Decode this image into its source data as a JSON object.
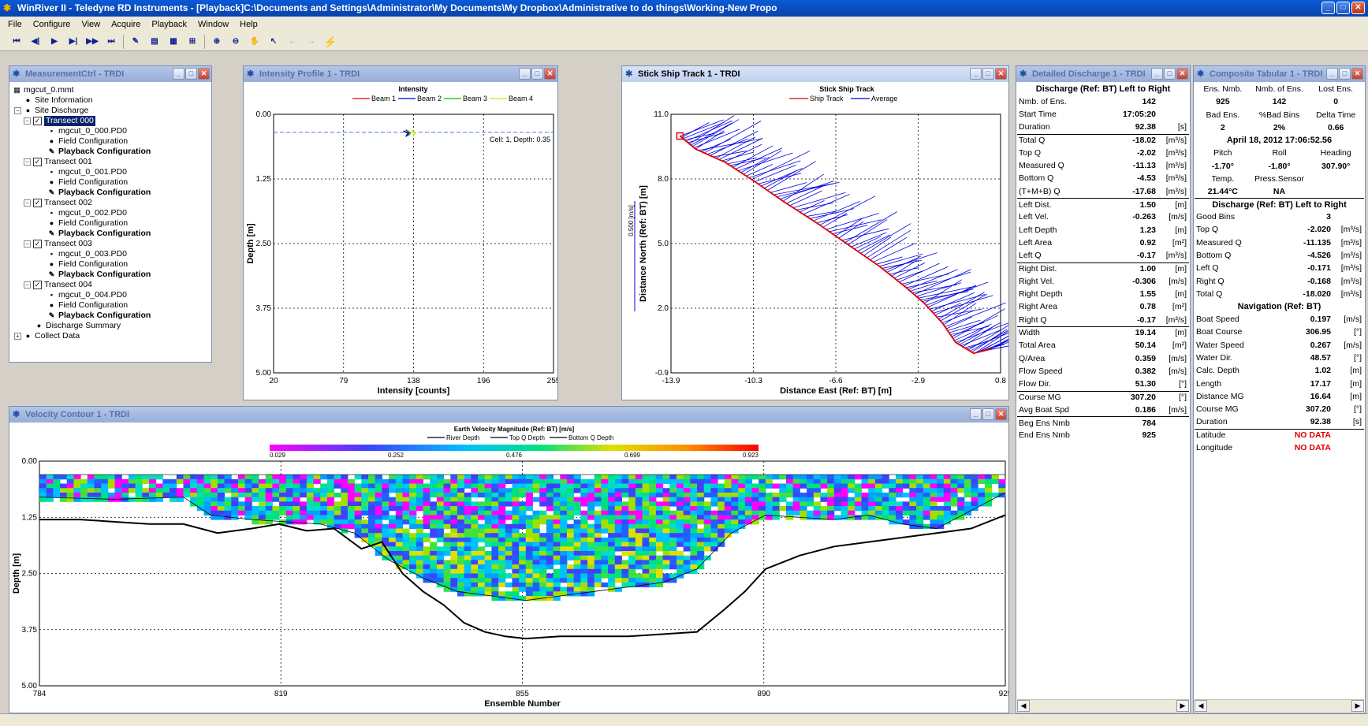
{
  "window": {
    "title": "WinRiver II - Teledyne RD Instruments - [Playback]C:\\Documents and Settings\\Administrator\\My Documents\\My Dropbox\\Administrative to do things\\Working-New Propo"
  },
  "menu": [
    "File",
    "Configure",
    "View",
    "Acquire",
    "Playback",
    "Window",
    "Help"
  ],
  "measurement": {
    "title": "MeasurementCtrl - TRDI",
    "file": "mgcut_0.mmt",
    "site_info": "Site Information",
    "site_discharge": "Site Discharge",
    "transects": [
      {
        "name": "Transect 000",
        "file": "mgcut_0_000.PD0"
      },
      {
        "name": "Transect 001",
        "file": "mgcut_0_001.PD0"
      },
      {
        "name": "Transect 002",
        "file": "mgcut_0_002.PD0"
      },
      {
        "name": "Transect 003",
        "file": "mgcut_0_003.PD0"
      },
      {
        "name": "Transect 004",
        "file": "mgcut_0_004.PD0"
      }
    ],
    "field_config": "Field Configuration",
    "playback_config": "Playback Configuration",
    "discharge_summary": "Discharge Summary",
    "collect_data": "Collect Data"
  },
  "intensity": {
    "window_title": "Intensity Profile 1 - TRDI",
    "chart_data": {
      "type": "line",
      "title": "Intensity",
      "xlabel": "Intensity [counts]",
      "ylabel": "Depth [m]",
      "xlim": [
        20,
        255
      ],
      "ylim": [
        0,
        5
      ],
      "xticks": [
        "20",
        "79",
        "138",
        "196",
        "255"
      ],
      "yticks": [
        "0.00",
        "1.25",
        "2.50",
        "3.75",
        "5.00"
      ],
      "annotation": "Cell: 1, Depth: 0.35",
      "series": [
        {
          "name": "Beam 1",
          "color": "#e00000",
          "points": [
            [
              131,
              0.3
            ],
            [
              134,
              0.36
            ],
            [
              132,
              0.42
            ]
          ]
        },
        {
          "name": "Beam 2",
          "color": "#0000e0",
          "points": [
            [
              129,
              0.32
            ],
            [
              133,
              0.37
            ],
            [
              131,
              0.43
            ]
          ]
        },
        {
          "name": "Beam 3",
          "color": "#00c000",
          "points": [
            [
              132,
              0.31
            ],
            [
              135,
              0.36
            ],
            [
              133,
              0.41
            ]
          ]
        },
        {
          "name": "Beam 4",
          "color": "#e0e000",
          "points": [
            [
              136,
              0.3
            ],
            [
              139,
              0.36
            ],
            [
              137,
              0.42
            ]
          ]
        }
      ],
      "cell_depth": 0.35
    }
  },
  "stick": {
    "window_title": "Stick Ship Track 1 - TRDI",
    "chart_data": {
      "type": "line",
      "title": "Stick Ship Track",
      "xlabel": "Distance East (Ref: BT) [m]",
      "ylabel": "Distance North (Ref: BT) [m]",
      "scale_label": "0.500 [m/s]",
      "xlim": [
        -13.9,
        0.8
      ],
      "ylim": [
        -0.9,
        11.0
      ],
      "xticks": [
        "-13.9",
        "-10.3",
        "-6.6",
        "-2.9",
        "0.8"
      ],
      "yticks": [
        "-0.9",
        "2.0",
        "5.0",
        "8.0",
        "11.0"
      ],
      "series": [
        {
          "name": "Ship Track",
          "color": "#e00000",
          "points": [
            [
              -13.5,
              10.0
            ],
            [
              -12.8,
              9.4
            ],
            [
              -11.5,
              8.8
            ],
            [
              -10.3,
              8.0
            ],
            [
              -8.9,
              7.0
            ],
            [
              -7.4,
              6.0
            ],
            [
              -6.0,
              5.0
            ],
            [
              -4.6,
              4.0
            ],
            [
              -3.5,
              3.1
            ],
            [
              -2.6,
              2.3
            ],
            [
              -1.8,
              1.4
            ],
            [
              -1.2,
              0.5
            ],
            [
              -0.4,
              0.0
            ],
            [
              0.4,
              0.2
            ]
          ]
        },
        {
          "name": "Average",
          "color": "#0000e0",
          "points": []
        }
      ]
    }
  },
  "velocity": {
    "window_title": "Velocity Contour 1 - TRDI",
    "chart_data": {
      "type": "heatmap",
      "title": "Earth Velocity Magnitude (Ref: BT) [m/s]",
      "xlabel": "Ensemble Number",
      "ylabel": "Depth [m]",
      "xlim": [
        784,
        925
      ],
      "ylim": [
        0,
        5
      ],
      "xticks": [
        "784",
        "819",
        "855",
        "890",
        "925"
      ],
      "yticks": [
        "0.00",
        "1.25",
        "2.50",
        "3.75",
        "5.00"
      ],
      "colorbar_ticks": [
        "0.029",
        "0.252",
        "0.476",
        "0.699",
        "0.923"
      ],
      "legend": [
        "River Depth",
        "Top Q Depth",
        "Bottom Q Depth"
      ],
      "river_depth": [
        [
          784,
          1.3
        ],
        [
          790,
          1.3
        ],
        [
          795,
          1.35
        ],
        [
          800,
          1.4
        ],
        [
          805,
          1.4
        ],
        [
          810,
          1.6
        ],
        [
          815,
          1.5
        ],
        [
          819,
          1.4
        ],
        [
          823,
          1.55
        ],
        [
          827,
          1.5
        ],
        [
          831,
          1.95
        ],
        [
          834,
          1.8
        ],
        [
          837,
          2.5
        ],
        [
          840,
          2.9
        ],
        [
          843,
          3.2
        ],
        [
          846,
          3.6
        ],
        [
          849,
          3.8
        ],
        [
          852,
          3.9
        ],
        [
          855,
          3.95
        ],
        [
          860,
          3.9
        ],
        [
          865,
          3.9
        ],
        [
          870,
          3.9
        ],
        [
          875,
          3.85
        ],
        [
          880,
          3.8
        ],
        [
          884,
          3.3
        ],
        [
          887,
          2.9
        ],
        [
          890,
          2.4
        ],
        [
          895,
          2.1
        ],
        [
          900,
          1.9
        ],
        [
          905,
          1.8
        ],
        [
          910,
          1.7
        ],
        [
          915,
          1.6
        ],
        [
          920,
          1.5
        ],
        [
          925,
          1.2
        ]
      ],
      "top_q_depth": 0.3,
      "bottom_q_depth": [
        [
          784,
          0.8
        ],
        [
          795,
          0.85
        ],
        [
          805,
          0.8
        ],
        [
          809,
          1.2
        ],
        [
          815,
          1.3
        ],
        [
          825,
          1.4
        ],
        [
          830,
          1.6
        ],
        [
          835,
          2.2
        ],
        [
          840,
          2.6
        ],
        [
          845,
          2.9
        ],
        [
          850,
          3.0
        ],
        [
          855,
          3.1
        ],
        [
          860,
          3.0
        ],
        [
          865,
          2.9
        ],
        [
          870,
          2.8
        ],
        [
          875,
          2.7
        ],
        [
          880,
          2.4
        ],
        [
          885,
          1.6
        ],
        [
          890,
          1.2
        ],
        [
          900,
          1.3
        ],
        [
          905,
          1.2
        ],
        [
          910,
          1.4
        ],
        [
          915,
          1.5
        ],
        [
          920,
          1.1
        ],
        [
          925,
          0.7
        ]
      ]
    }
  },
  "detailed": {
    "window_title": "Detailed Discharge 1 - TRDI",
    "header": "Discharge (Ref: BT) Left to Right",
    "rows": [
      {
        "label": "Nmb. of Ens.",
        "value": "142",
        "unit": ""
      },
      {
        "label": "Start Time",
        "value": "17:05:20",
        "unit": ""
      },
      {
        "label": "Duration",
        "value": "92.38",
        "unit": "[s]"
      },
      {
        "label": "Total Q",
        "value": "-18.02",
        "unit": "[m³/s]",
        "line": true
      },
      {
        "label": "Top Q",
        "value": "-2.02",
        "unit": "[m³/s]"
      },
      {
        "label": "Measured Q",
        "value": "-11.13",
        "unit": "[m³/s]"
      },
      {
        "label": "Bottom Q",
        "value": "-4.53",
        "unit": "[m³/s]"
      },
      {
        "label": "(T+M+B) Q",
        "value": "-17.68",
        "unit": "[m³/s]"
      },
      {
        "label": "Left Dist.",
        "value": "1.50",
        "unit": "[m]",
        "line": true
      },
      {
        "label": "Left Vel.",
        "value": "-0.263",
        "unit": "[m/s]"
      },
      {
        "label": "Left Depth",
        "value": "1.23",
        "unit": "[m]"
      },
      {
        "label": "Left Area",
        "value": "0.92",
        "unit": "[m²]"
      },
      {
        "label": "Left Q",
        "value": "-0.17",
        "unit": "[m³/s]"
      },
      {
        "label": "Right Dist.",
        "value": "1.00",
        "unit": "[m]",
        "line": true
      },
      {
        "label": "Right Vel.",
        "value": "-0.306",
        "unit": "[m/s]"
      },
      {
        "label": "Right Depth",
        "value": "1.55",
        "unit": "[m]"
      },
      {
        "label": "Right Area",
        "value": "0.78",
        "unit": "[m²]"
      },
      {
        "label": "Right Q",
        "value": "-0.17",
        "unit": "[m³/s]"
      },
      {
        "label": "Width",
        "value": "19.14",
        "unit": "[m]",
        "line": true
      },
      {
        "label": "Total Area",
        "value": "50.14",
        "unit": "[m²]"
      },
      {
        "label": "Q/Area",
        "value": "0.359",
        "unit": "[m/s]"
      },
      {
        "label": "Flow Speed",
        "value": "0.382",
        "unit": "[m/s]"
      },
      {
        "label": "Flow Dir.",
        "value": "51.30",
        "unit": "[°]"
      },
      {
        "label": "Course MG",
        "value": "307.20",
        "unit": "[°]",
        "line": true
      },
      {
        "label": "Avg Boat Spd",
        "value": "0.186",
        "unit": "[m/s]"
      },
      {
        "label": "Beg Ens Nmb",
        "value": "784",
        "unit": "",
        "line": true
      },
      {
        "label": "End Ens Nmb",
        "value": "925",
        "unit": ""
      }
    ]
  },
  "composite": {
    "window_title": "Composite Tabular 1 - TRDI",
    "top_labels": [
      "Ens. Nmb.",
      "Nmb. of Ens.",
      "Lost Ens."
    ],
    "top_values": [
      "925",
      "142",
      "0"
    ],
    "mid_labels": [
      "Bad Ens.",
      "%Bad Bins",
      "Delta Time"
    ],
    "mid_values": [
      "2",
      "2%",
      "0.66"
    ],
    "date": "April 18, 2012  17:06:52.56",
    "att_labels": [
      "Pitch",
      "Roll",
      "Heading"
    ],
    "att_values": [
      "-1.70°",
      "-1.80°",
      "307.90°"
    ],
    "temp_labels": [
      "Temp.",
      "Press.Sensor",
      ""
    ],
    "temp_values": [
      "21.44°C",
      "NA",
      ""
    ],
    "discharge_header": "Discharge (Ref: BT) Left to Right",
    "discharge_rows": [
      {
        "label": "Good Bins",
        "value": "3",
        "unit": ""
      },
      {
        "label": "Top Q",
        "value": "-2.020",
        "unit": "[m³/s]"
      },
      {
        "label": "Measured Q",
        "value": "-11.135",
        "unit": "[m³/s]"
      },
      {
        "label": "Bottom Q",
        "value": "-4.526",
        "unit": "[m³/s]"
      },
      {
        "label": "Left Q",
        "value": "-0.171",
        "unit": "[m³/s]"
      },
      {
        "label": "Right Q",
        "value": "-0.168",
        "unit": "[m³/s]"
      },
      {
        "label": "Total Q",
        "value": "-18.020",
        "unit": "[m³/s]"
      }
    ],
    "nav_header": "Navigation (Ref: BT)",
    "nav_rows": [
      {
        "label": "Boat Speed",
        "value": "0.197",
        "unit": "[m/s]"
      },
      {
        "label": "Boat Course",
        "value": "306.95",
        "unit": "[°]"
      },
      {
        "label": "Water Speed",
        "value": "0.267",
        "unit": "[m/s]"
      },
      {
        "label": "Water Dir.",
        "value": "48.57",
        "unit": "[°]"
      },
      {
        "label": "Calc. Depth",
        "value": "1.02",
        "unit": "[m]"
      },
      {
        "label": "Length",
        "value": "17.17",
        "unit": "[m]"
      },
      {
        "label": "Distance MG",
        "value": "16.64",
        "unit": "[m]"
      },
      {
        "label": "Course MG",
        "value": "307.20",
        "unit": "[°]"
      },
      {
        "label": "Duration",
        "value": "92.38",
        "unit": "[s]"
      },
      {
        "label": "Latitude",
        "value": "NO DATA",
        "unit": "",
        "red": true,
        "line": true
      },
      {
        "label": "Longitude",
        "value": "NO DATA",
        "unit": "",
        "red": true
      }
    ]
  },
  "colors": {
    "accent": "#0a246a",
    "red": "#e00000",
    "blue": "#0000e0"
  }
}
